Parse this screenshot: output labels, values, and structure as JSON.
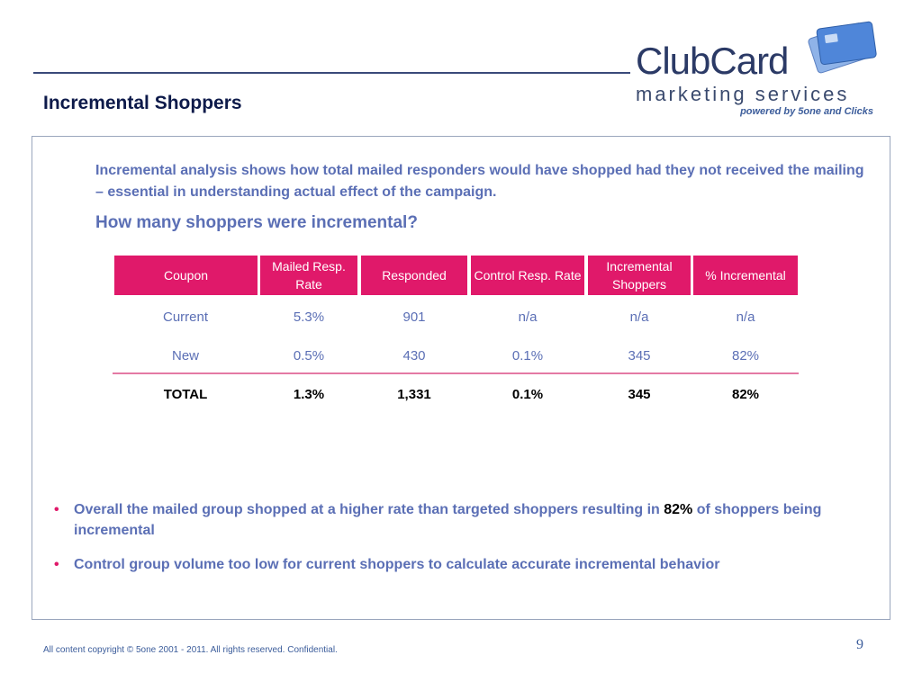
{
  "logo": {
    "brand": "ClubCard",
    "tagline": "marketing services",
    "powered_by": "powered by 5one and Clicks"
  },
  "slide": {
    "title": "Incremental Shoppers",
    "intro": "Incremental analysis shows how total mailed responders would have shopped had they not received the mailing – essential in understanding actual effect of the campaign.",
    "question": "How many shoppers were incremental?"
  },
  "table": {
    "headers": [
      "Coupon",
      "Mailed Resp. Rate",
      "Responded",
      "Control Resp. Rate",
      "Incremental Shoppers",
      "% Incremental"
    ],
    "rows": [
      [
        "Current",
        "5.3%",
        "901",
        "n/a",
        "n/a",
        "n/a"
      ],
      [
        "New",
        "0.5%",
        "430",
        "0.1%",
        "345",
        "82%"
      ]
    ],
    "total": [
      "TOTAL",
      "1.3%",
      "1,331",
      "0.1%",
      "345",
      "82%"
    ]
  },
  "bullets": {
    "b1_pre": "Overall the mailed group shopped at a higher rate than targeted shoppers resulting in ",
    "b1_highlight": "82%",
    "b1_post": " of shoppers being incremental",
    "b2": "Control group volume too low for current shoppers to calculate accurate incremental behavior",
    "marker": "•"
  },
  "footer": {
    "copyright": "All content copyright © 5one 2001 - 2011. All rights reserved. Confidential.",
    "page_number": "9"
  },
  "colors": {
    "accent": "#e0196a",
    "text_blue": "#5b6fb5",
    "title": "#0d1a4a"
  }
}
